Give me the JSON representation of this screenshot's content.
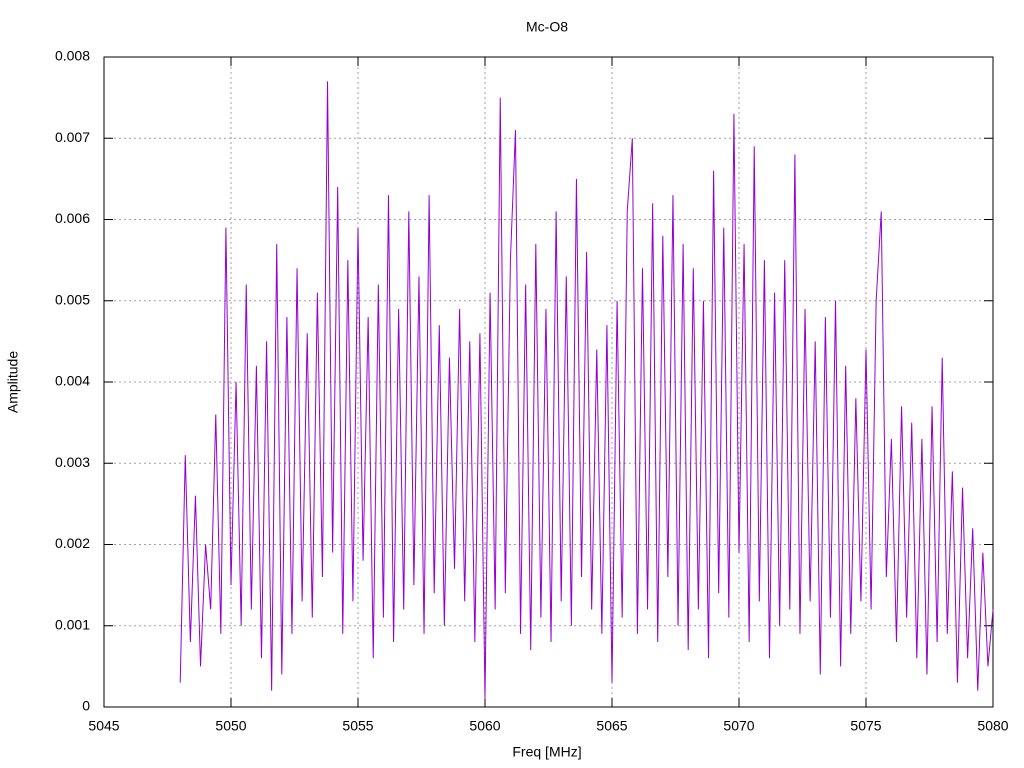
{
  "chart_data": {
    "type": "line",
    "title": "Mc-O8",
    "x_label": "Freq [MHz]",
    "y_label": "Amplitude",
    "color": "#9400d3",
    "grid": true,
    "xlim": [
      5045,
      5080
    ],
    "xticks": [
      5045,
      5050,
      5055,
      5060,
      5065,
      5070,
      5075,
      5080
    ],
    "ylim": [
      0,
      0.008
    ],
    "yticks": [
      0,
      0.001,
      0.002,
      0.003,
      0.004,
      0.005,
      0.006,
      0.007,
      0.008
    ],
    "x": [
      5048,
      5048.2,
      5048.4,
      5048.6,
      5048.8,
      5049,
      5049.2,
      5049.4,
      5049.6,
      5049.8,
      5050,
      5050.2,
      5050.4,
      5050.6,
      5050.8,
      5051,
      5051.2,
      5051.4,
      5051.6,
      5051.8,
      5052,
      5052.2,
      5052.4,
      5052.6,
      5052.8,
      5053,
      5053.2,
      5053.4,
      5053.6,
      5053.8,
      5054,
      5054.2,
      5054.4,
      5054.6,
      5054.8,
      5055,
      5055.2,
      5055.4,
      5055.6,
      5055.8,
      5056,
      5056.2,
      5056.4,
      5056.6,
      5056.8,
      5057,
      5057.2,
      5057.4,
      5057.6,
      5057.8,
      5058,
      5058.2,
      5058.4,
      5058.6,
      5058.8,
      5059,
      5059.2,
      5059.4,
      5059.6,
      5059.8,
      5060,
      5060.2,
      5060.4,
      5060.6,
      5060.8,
      5061,
      5061.2,
      5061.4,
      5061.6,
      5061.8,
      5062,
      5062.2,
      5062.4,
      5062.6,
      5062.8,
      5063,
      5063.2,
      5063.4,
      5063.6,
      5063.8,
      5064,
      5064.2,
      5064.4,
      5064.6,
      5064.8,
      5065,
      5065.2,
      5065.4,
      5065.6,
      5065.8,
      5066,
      5066.2,
      5066.4,
      5066.6,
      5066.8,
      5067,
      5067.2,
      5067.4,
      5067.6,
      5067.8,
      5068,
      5068.2,
      5068.4,
      5068.6,
      5068.8,
      5069,
      5069.2,
      5069.4,
      5069.6,
      5069.8,
      5070,
      5070.2,
      5070.4,
      5070.6,
      5070.8,
      5071,
      5071.2,
      5071.4,
      5071.6,
      5071.8,
      5072,
      5072.2,
      5072.4,
      5072.6,
      5072.8,
      5073,
      5073.2,
      5073.4,
      5073.6,
      5073.8,
      5074,
      5074.2,
      5074.4,
      5074.6,
      5074.8,
      5075,
      5075.2,
      5075.4,
      5075.6,
      5075.8,
      5076,
      5076.2,
      5076.4,
      5076.6,
      5076.8,
      5077,
      5077.2,
      5077.4,
      5077.6,
      5077.8,
      5078,
      5078.2,
      5078.4,
      5078.6,
      5078.8,
      5079,
      5079.2,
      5079.4,
      5079.6,
      5079.8,
      5080
    ],
    "values": [
      0.0003,
      0.0031,
      0.0008,
      0.0026,
      0.0005,
      0.002,
      0.0012,
      0.0036,
      0.0009,
      0.0059,
      0.0015,
      0.004,
      0.001,
      0.0052,
      0.0012,
      0.0042,
      0.0006,
      0.0045,
      0.0002,
      0.0057,
      0.0004,
      0.0048,
      0.0009,
      0.0054,
      0.0013,
      0.0046,
      0.0011,
      0.0051,
      0.0016,
      0.0077,
      0.0019,
      0.0064,
      0.0009,
      0.0055,
      0.0013,
      0.0059,
      0.0018,
      0.0048,
      0.0006,
      0.0052,
      0.0011,
      0.0063,
      0.0008,
      0.0049,
      0.0012,
      0.0061,
      0.0015,
      0.0053,
      0.0009,
      0.0063,
      0.0014,
      0.0047,
      0.001,
      0.0043,
      0.0017,
      0.0049,
      0.0013,
      0.0045,
      0.0008,
      0.0046,
      0.0001,
      0.0051,
      0.0012,
      0.0075,
      0.0014,
      0.0055,
      0.0071,
      0.0009,
      0.0052,
      0.0007,
      0.0057,
      0.0011,
      0.0049,
      0.0008,
      0.0061,
      0.0013,
      0.0053,
      0.001,
      0.0065,
      0.0016,
      0.0056,
      0.0012,
      0.0044,
      0.0009,
      0.0047,
      0.0003,
      0.005,
      0.0011,
      0.0061,
      0.007,
      0.0009,
      0.0054,
      0.0012,
      0.0062,
      0.0008,
      0.0058,
      0.0016,
      0.0063,
      0.001,
      0.0057,
      0.0007,
      0.0054,
      0.0012,
      0.005,
      0.0006,
      0.0066,
      0.0014,
      0.0059,
      0.0011,
      0.0073,
      0.0019,
      0.0057,
      0.0008,
      0.0069,
      0.0013,
      0.0055,
      0.0006,
      0.0051,
      0.001,
      0.0055,
      0.0012,
      0.0068,
      0.0009,
      0.0049,
      0.0013,
      0.0045,
      0.0004,
      0.0048,
      0.0011,
      0.005,
      0.0005,
      0.0042,
      0.0009,
      0.0038,
      0.0013,
      0.0044,
      0.0012,
      0.005,
      0.0061,
      0.0016,
      0.0033,
      0.0008,
      0.0037,
      0.0011,
      0.0035,
      0.0006,
      0.0033,
      0.0004,
      0.0037,
      0.0008,
      0.0043,
      0.0009,
      0.0029,
      0.0003,
      0.0027,
      0.0006,
      0.0022,
      0.0002,
      0.0019,
      0.0005,
      0.0012
    ]
  }
}
